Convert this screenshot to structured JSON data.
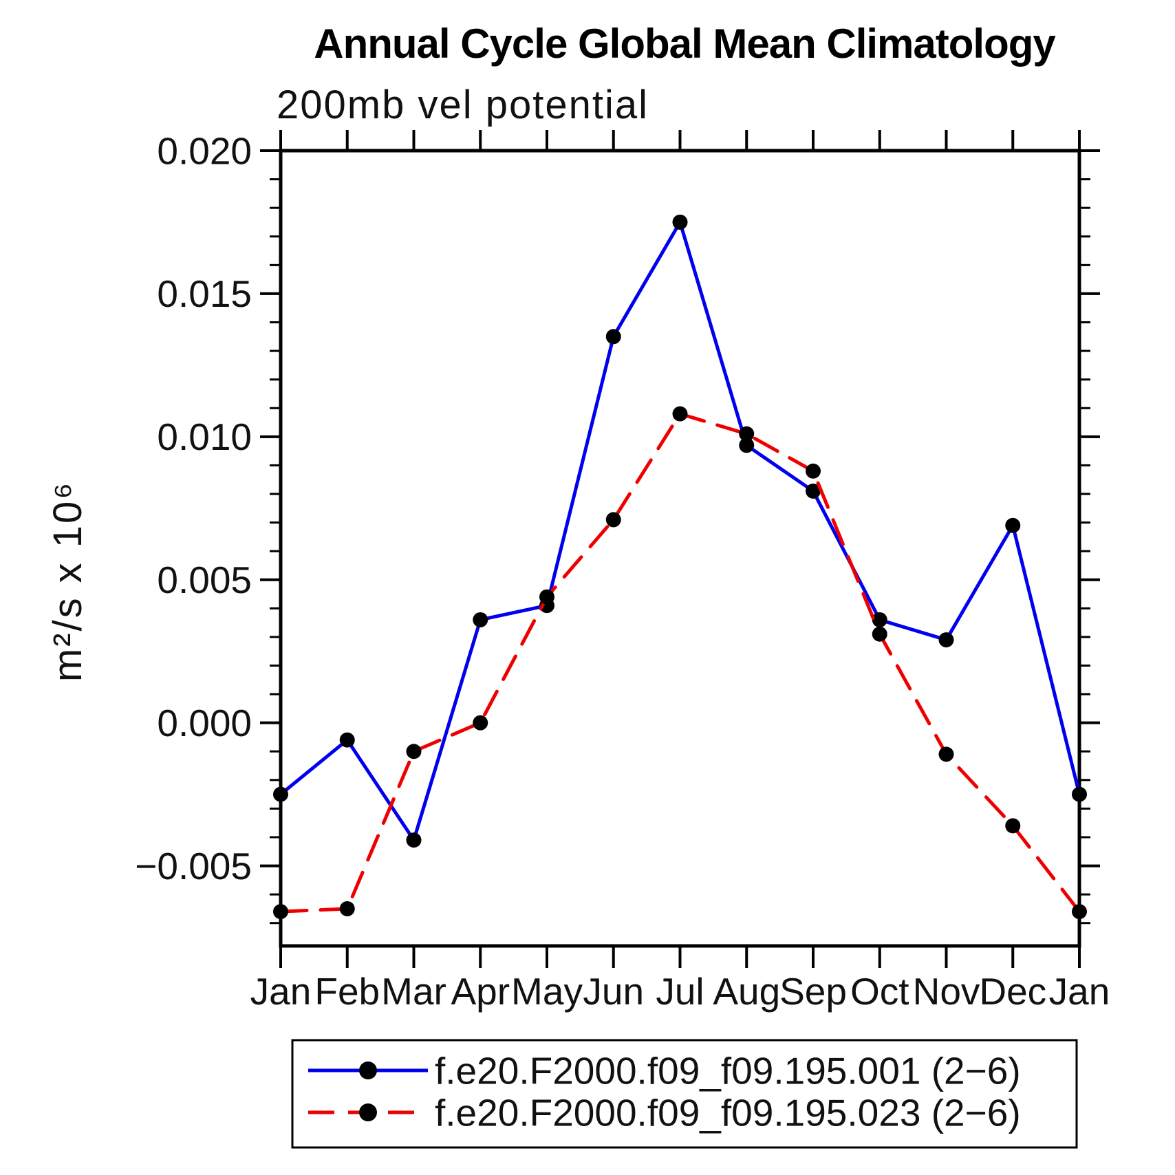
{
  "title": "Annual Cycle Global Mean Climatology",
  "chart_data": {
    "type": "line",
    "title": "Annual Cycle Global Mean Climatology",
    "subtitle": "200mb vel potential",
    "ylabel": "m²/s x 10⁶",
    "x_categories": [
      "Jan",
      "Feb",
      "Mar",
      "Apr",
      "May",
      "Jun",
      "Jul",
      "Aug",
      "Sep",
      "Oct",
      "Nov",
      "Dec",
      "Jan"
    ],
    "series": [
      {
        "name": "f.e20.F2000.f09_f09.195.001 (2−6)",
        "color": "#0000ee",
        "line_style": "solid",
        "marker": "circle",
        "marker_color": "#000000",
        "values": [
          -0.0025,
          -0.0006,
          -0.0041,
          0.0036,
          0.0041,
          0.0135,
          0.0175,
          0.0097,
          0.0081,
          0.0036,
          0.0029,
          0.0069,
          -0.0025
        ]
      },
      {
        "name": "f.e20.F2000.f09_f09.195.023 (2−6)",
        "color": "#ee0000",
        "line_style": "dashed",
        "marker": "circle",
        "marker_color": "#000000",
        "values": [
          -0.0066,
          -0.0065,
          -0.001,
          0.0,
          0.0044,
          0.0071,
          0.0108,
          0.0101,
          0.0088,
          0.0031,
          -0.0011,
          -0.0036,
          -0.0066
        ]
      }
    ],
    "y_major_ticks": [
      0.02,
      0.015,
      0.01,
      0.005,
      0.0,
      -0.005
    ],
    "y_tick_labels": [
      "0.020",
      "0.015",
      "0.010",
      "0.005",
      "0.000",
      "−0.005"
    ],
    "y_minor_step": 0.001,
    "ylim": [
      -0.0078,
      0.02
    ],
    "grid": false,
    "legend_position": "bottom",
    "axis_color": "#000000"
  }
}
